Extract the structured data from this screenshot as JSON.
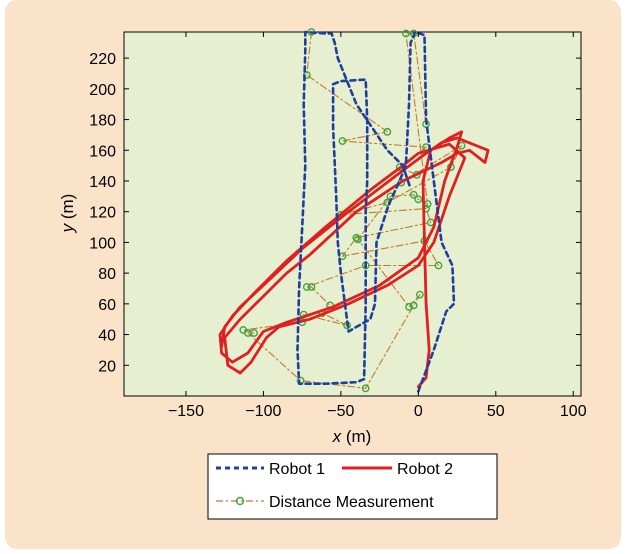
{
  "chart_data": {
    "type": "line",
    "xlabel_var": "x",
    "xlabel_unit": " (m)",
    "ylabel_var": "y",
    "ylabel_unit": " (m)",
    "xlim": [
      -190,
      105
    ],
    "ylim": [
      0,
      237
    ],
    "xticks": [
      -150,
      -100,
      -50,
      0,
      50,
      100
    ],
    "yticks": [
      20,
      40,
      60,
      80,
      100,
      120,
      140,
      160,
      180,
      200,
      220
    ],
    "tick_labels_x": [
      "−150",
      "−100",
      "−50",
      "0",
      "50",
      "100"
    ],
    "tick_labels_y": [
      "20",
      "40",
      "60",
      "80",
      "100",
      "120",
      "140",
      "160",
      "180",
      "200",
      "220"
    ],
    "grid": false,
    "plot_background": "#e6efcf",
    "legend_position": "bottom-center",
    "series": [
      {
        "name": "Robot 1",
        "style": "dashed",
        "color": "#1f3f9e",
        "points": [
          [
            0,
            3
          ],
          [
            10,
            30
          ],
          [
            18,
            55
          ],
          [
            23,
            60
          ],
          [
            22,
            85
          ],
          [
            15,
            100
          ],
          [
            10,
            140
          ],
          [
            5,
            180
          ],
          [
            4,
            235
          ],
          [
            -2,
            237
          ],
          [
            -5,
            230
          ],
          [
            -6,
            190
          ],
          [
            -8,
            150
          ],
          [
            -13,
            138
          ],
          [
            -19,
            125
          ],
          [
            -27,
            100
          ],
          [
            -28,
            60
          ],
          [
            -31,
            50
          ],
          [
            -40,
            45
          ],
          [
            -45,
            42
          ],
          [
            -50,
            80
          ],
          [
            -52,
            100
          ],
          [
            -53,
            130
          ],
          [
            -55,
            175
          ],
          [
            -55,
            203
          ],
          [
            -50,
            205
          ],
          [
            -34,
            206
          ],
          [
            -33,
            180
          ],
          [
            -33,
            140
          ],
          [
            -34,
            120
          ],
          [
            -34,
            60
          ],
          [
            -35,
            11
          ],
          [
            -40,
            9
          ],
          [
            -60,
            8
          ],
          [
            -77,
            8
          ],
          [
            -78,
            30
          ],
          [
            -77,
            70
          ],
          [
            -75,
            110
          ],
          [
            -73,
            150
          ],
          [
            -74,
            190
          ],
          [
            -73,
            225
          ],
          [
            -73,
            237
          ],
          [
            -60,
            236
          ],
          [
            -56,
            236
          ],
          [
            -54,
            230
          ],
          [
            -52,
            220
          ],
          [
            -40,
            190
          ],
          [
            -20,
            160
          ],
          [
            -10,
            150
          ],
          [
            -5,
            135
          ]
        ]
      },
      {
        "name": "Robot 2",
        "style": "solid",
        "color": "#e02020",
        "points": [
          [
            0,
            6
          ],
          [
            5,
            12
          ],
          [
            7,
            30
          ],
          [
            5,
            60
          ],
          [
            4,
            100
          ],
          [
            3,
            140
          ],
          [
            8,
            160
          ],
          [
            15,
            165
          ],
          [
            25,
            168
          ],
          [
            45,
            160
          ],
          [
            43,
            152
          ],
          [
            33,
            160
          ],
          [
            25,
            158
          ],
          [
            15,
            152
          ],
          [
            -10,
            140
          ],
          [
            -40,
            120
          ],
          [
            -70,
            92
          ],
          [
            -85,
            80
          ],
          [
            -100,
            65
          ],
          [
            -115,
            50
          ],
          [
            -125,
            38
          ],
          [
            -123,
            20
          ],
          [
            -115,
            15
          ],
          [
            -108,
            22
          ],
          [
            -98,
            38
          ],
          [
            -90,
            45
          ],
          [
            -70,
            50
          ],
          [
            -45,
            60
          ],
          [
            -20,
            72
          ],
          [
            0,
            85
          ],
          [
            10,
            100
          ],
          [
            20,
            130
          ],
          [
            30,
            155
          ],
          [
            20,
            164
          ],
          [
            0,
            158
          ],
          [
            -10,
            150
          ],
          [
            -30,
            135
          ],
          [
            -60,
            110
          ],
          [
            -85,
            88
          ],
          [
            -105,
            68
          ],
          [
            -120,
            52
          ],
          [
            -128,
            40
          ],
          [
            -127,
            28
          ],
          [
            -120,
            22
          ],
          [
            -110,
            28
          ],
          [
            -100,
            42
          ],
          [
            -85,
            48
          ],
          [
            -55,
            58
          ],
          [
            -25,
            72
          ],
          [
            0,
            90
          ],
          [
            10,
            110
          ],
          [
            17,
            140
          ],
          [
            25,
            162
          ],
          [
            28,
            172
          ],
          [
            20,
            168
          ],
          [
            5,
            158
          ],
          [
            -15,
            143
          ],
          [
            -45,
            120
          ],
          [
            -75,
            96
          ],
          [
            -100,
            72
          ],
          [
            -115,
            58
          ],
          [
            -125,
            45
          ],
          [
            -127,
            32
          ]
        ]
      },
      {
        "name": "Distance Measurement",
        "style": "dashdot",
        "color": "#c8782a",
        "marker_color": "#3fa63f",
        "points": [
          [
            -69,
            237
          ],
          [
            -72,
            209
          ],
          [
            -20,
            172
          ],
          [
            -49,
            166
          ],
          [
            5,
            162
          ],
          [
            -12,
            149
          ],
          [
            -1,
            144
          ],
          [
            -11,
            139
          ],
          [
            28,
            163
          ],
          [
            21,
            149
          ],
          [
            -20,
            126
          ],
          [
            -50,
            118
          ],
          [
            5,
            122
          ],
          [
            8,
            113
          ],
          [
            -40,
            103
          ],
          [
            -49,
            91
          ],
          [
            4,
            101
          ],
          [
            13,
            85
          ],
          [
            -34,
            85
          ],
          [
            -72,
            71
          ],
          [
            -69,
            71
          ],
          [
            -57,
            59
          ],
          [
            -62,
            54
          ],
          [
            -46,
            46
          ],
          [
            -74,
            53
          ],
          [
            -75,
            48
          ],
          [
            -113,
            43
          ],
          [
            -106,
            41
          ],
          [
            -110,
            41
          ],
          [
            -76,
            10
          ],
          [
            -34,
            5
          ],
          [
            -3,
            59
          ],
          [
            1,
            66
          ],
          [
            -6,
            58
          ],
          [
            -39,
            102
          ],
          [
            -18,
            130
          ],
          [
            -3,
            131
          ],
          [
            0,
            128
          ],
          [
            6,
            125
          ],
          [
            -8,
            236
          ],
          [
            -3,
            236
          ],
          [
            5,
            177
          ]
        ]
      }
    ]
  }
}
